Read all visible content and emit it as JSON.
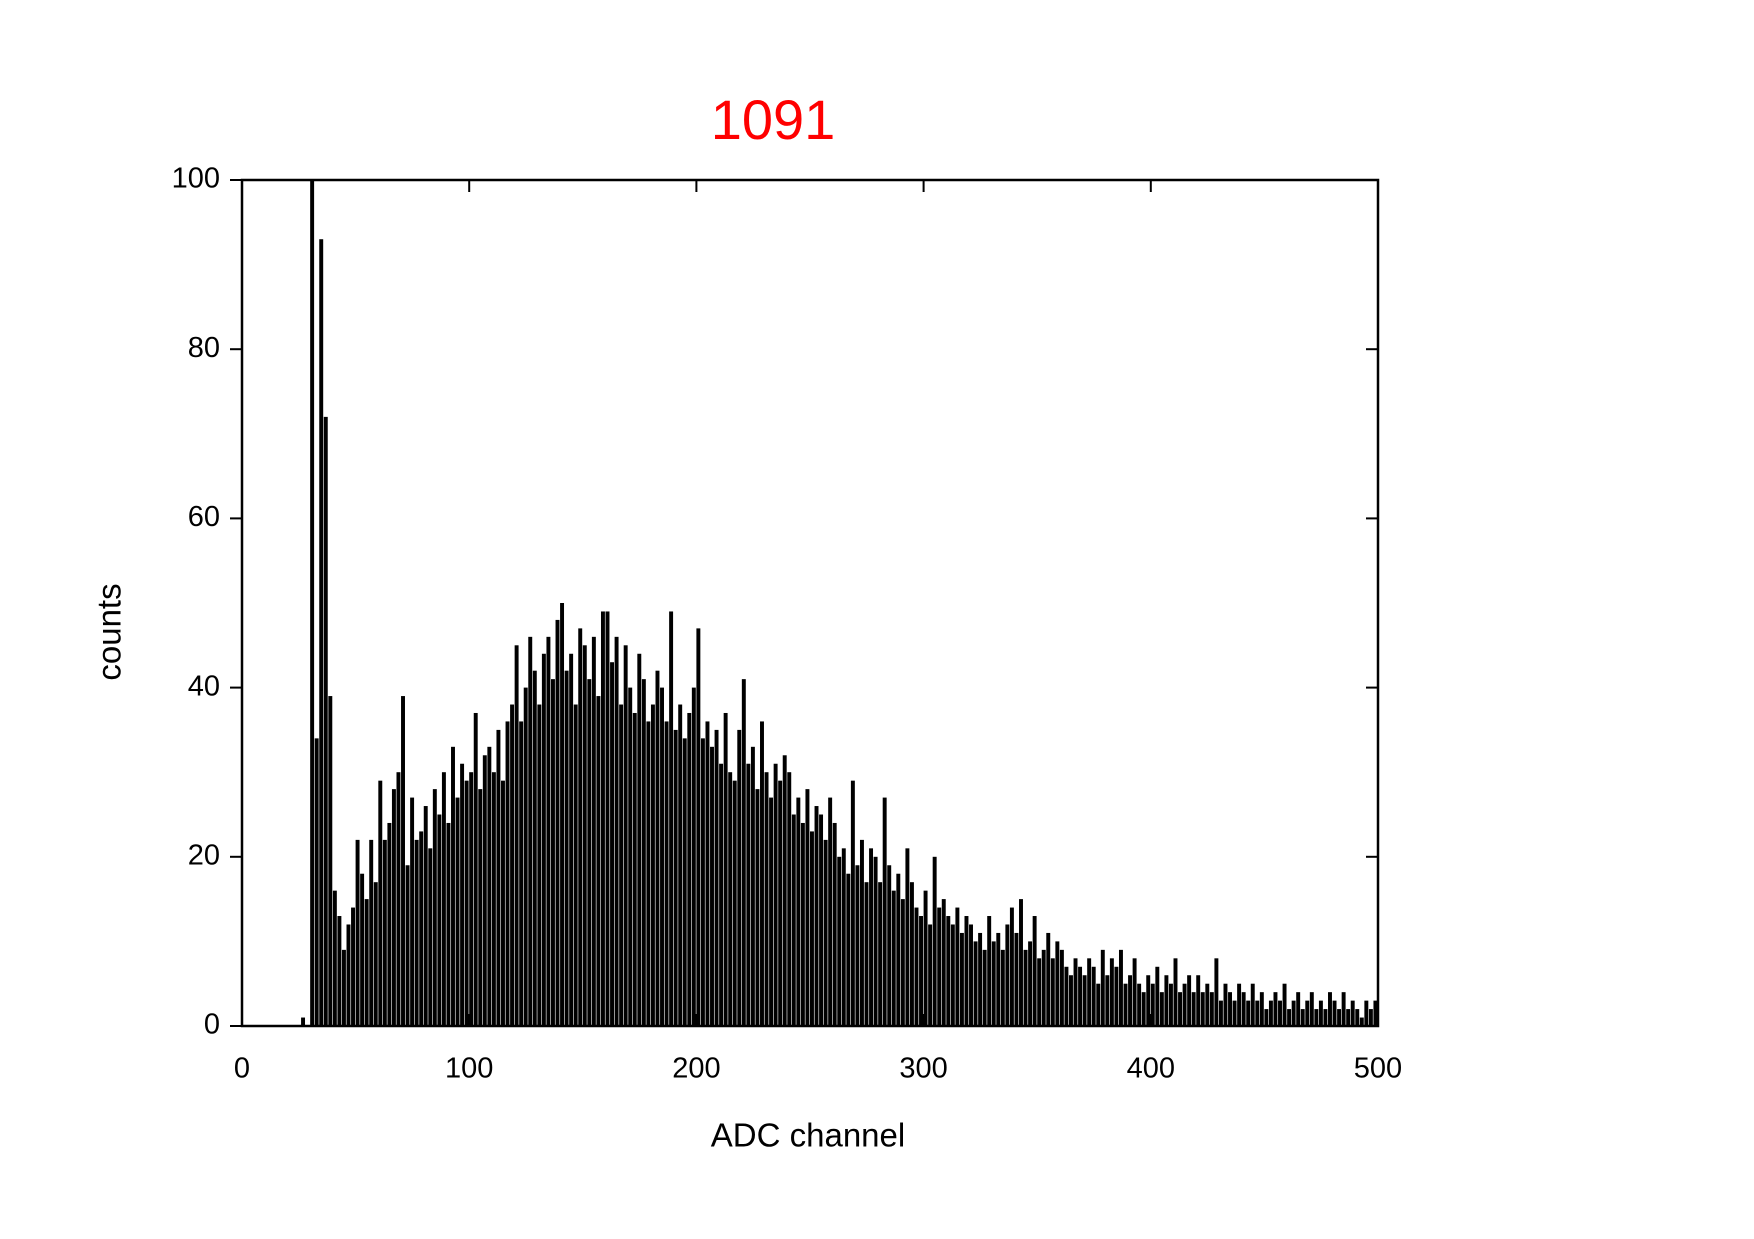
{
  "chart_data": {
    "type": "histogram",
    "title": "1091",
    "title_color": "#ff0000",
    "color": "#000000",
    "xlabel": "ADC channel",
    "ylabel": "counts",
    "xlim": [
      0,
      500
    ],
    "ylim": [
      0,
      100
    ],
    "xticks": [
      0,
      100,
      200,
      300,
      400,
      500
    ],
    "yticks": [
      0,
      20,
      40,
      60,
      80,
      100
    ],
    "bins": [
      0,
      2,
      4,
      6,
      8,
      10,
      12,
      14,
      16,
      18,
      20,
      22,
      24,
      26,
      28,
      30,
      32,
      34,
      36,
      38,
      40,
      42,
      44,
      46,
      48,
      50,
      52,
      54,
      56,
      58,
      60,
      62,
      64,
      66,
      68,
      70,
      72,
      74,
      76,
      78,
      80,
      82,
      84,
      86,
      88,
      90,
      92,
      94,
      96,
      98,
      100,
      102,
      104,
      106,
      108,
      110,
      112,
      114,
      116,
      118,
      120,
      122,
      124,
      126,
      128,
      130,
      132,
      134,
      136,
      138,
      140,
      142,
      144,
      146,
      148,
      150,
      152,
      154,
      156,
      158,
      160,
      162,
      164,
      166,
      168,
      170,
      172,
      174,
      176,
      178,
      180,
      182,
      184,
      186,
      188,
      190,
      192,
      194,
      196,
      198,
      200,
      202,
      204,
      206,
      208,
      210,
      212,
      214,
      216,
      218,
      220,
      222,
      224,
      226,
      228,
      230,
      232,
      234,
      236,
      238,
      240,
      242,
      244,
      246,
      248,
      250,
      252,
      254,
      256,
      258,
      260,
      262,
      264,
      266,
      268,
      270,
      272,
      274,
      276,
      278,
      280,
      282,
      284,
      286,
      288,
      290,
      292,
      294,
      296,
      298,
      300,
      302,
      304,
      306,
      308,
      310,
      312,
      314,
      316,
      318,
      320,
      322,
      324,
      326,
      328,
      330,
      332,
      334,
      336,
      338,
      340,
      342,
      344,
      346,
      348,
      350,
      352,
      354,
      356,
      358,
      360,
      362,
      364,
      366,
      368,
      370,
      372,
      374,
      376,
      378,
      380,
      382,
      384,
      386,
      388,
      390,
      392,
      394,
      396,
      398,
      400,
      402,
      404,
      406,
      408,
      410,
      412,
      414,
      416,
      418,
      420,
      422,
      424,
      426,
      428,
      430,
      432,
      434,
      436,
      438,
      440,
      442,
      444,
      446,
      448,
      450,
      452,
      454,
      456,
      458,
      460,
      462,
      464,
      466,
      468,
      470,
      472,
      474,
      476,
      478,
      480,
      482,
      484,
      486,
      488,
      490,
      492,
      494,
      496,
      498,
      500
    ],
    "counts": [
      0,
      0,
      0,
      0,
      0,
      0,
      0,
      0,
      0,
      0,
      0,
      0,
      0,
      1,
      0,
      100,
      34,
      93,
      72,
      39,
      16,
      13,
      9,
      12,
      14,
      22,
      18,
      15,
      22,
      17,
      29,
      22,
      24,
      28,
      30,
      39,
      19,
      27,
      22,
      23,
      26,
      21,
      28,
      25,
      30,
      24,
      33,
      27,
      31,
      29,
      30,
      37,
      28,
      32,
      33,
      30,
      35,
      29,
      36,
      38,
      45,
      36,
      40,
      46,
      42,
      38,
      44,
      46,
      41,
      48,
      50,
      42,
      44,
      38,
      47,
      45,
      41,
      46,
      39,
      49,
      49,
      43,
      46,
      38,
      45,
      40,
      37,
      44,
      41,
      36,
      38,
      42,
      40,
      36,
      49,
      35,
      38,
      34,
      37,
      40,
      47,
      34,
      36,
      33,
      35,
      31,
      37,
      30,
      29,
      35,
      41,
      31,
      33,
      28,
      36,
      30,
      27,
      31,
      29,
      32,
      30,
      25,
      27,
      24,
      28,
      23,
      26,
      25,
      22,
      27,
      24,
      20,
      21,
      18,
      29,
      19,
      22,
      17,
      21,
      20,
      17,
      27,
      19,
      16,
      18,
      15,
      21,
      17,
      14,
      13,
      16,
      12,
      20,
      14,
      15,
      13,
      12,
      14,
      11,
      13,
      12,
      10,
      11,
      9,
      13,
      10,
      11,
      9,
      12,
      14,
      11,
      15,
      9,
      10,
      13,
      8,
      9,
      11,
      8,
      10,
      9,
      7,
      6,
      8,
      7,
      6,
      8,
      7,
      5,
      9,
      6,
      8,
      7,
      9,
      5,
      6,
      8,
      5,
      4,
      6,
      5,
      7,
      4,
      6,
      5,
      8,
      4,
      5,
      6,
      4,
      6,
      4,
      5,
      4,
      8,
      3,
      5,
      4,
      3,
      5,
      4,
      3,
      5,
      3,
      4,
      2,
      3,
      4,
      3,
      5,
      2,
      3,
      4,
      2,
      3,
      4,
      2,
      3,
      2,
      4,
      3,
      2,
      4,
      2,
      3,
      2,
      1,
      3,
      2,
      3
    ]
  }
}
